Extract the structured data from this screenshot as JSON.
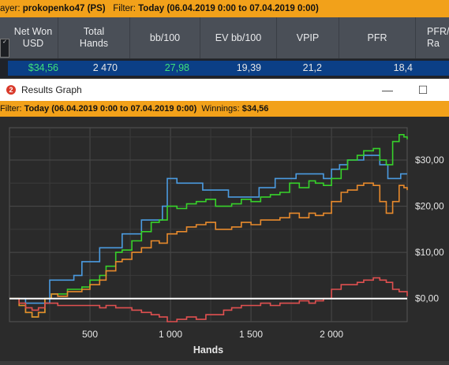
{
  "filterbar": {
    "player_label": "ayer:",
    "player": "prokopenko47 (PS)",
    "filter_label": "Filter:",
    "filter_value": "Today (06.04.2019 0:00 to 07.04.2019 0:00)"
  },
  "badge": "✓",
  "stats": {
    "headers": [
      "Net Won USD",
      "Total Hands",
      "bb/100",
      "EV bb/100",
      "VPIP",
      "PFR",
      "PFR/ Ra"
    ],
    "values": [
      "$34,56",
      "2 470",
      "27,98",
      "19,39",
      "21,2",
      "18,4",
      ""
    ],
    "colors": {
      "positive": "#3fe07a",
      "neutral": "#e6e6e6"
    }
  },
  "window": {
    "icon": "2",
    "title": "Results Graph",
    "minimize": "—",
    "maximize": "☐"
  },
  "graph_filter": {
    "filter_label": "Filter:",
    "filter_value": "Today (06.04.2019 0:00 to 07.04.2019 0:00)",
    "winnings_label": "Winnings:",
    "winnings_value": "$34,56"
  },
  "chart_data": {
    "type": "line",
    "xlabel": "Hands",
    "ylabel": "",
    "xlim": [
      0,
      2470
    ],
    "ylim": [
      -5,
      37
    ],
    "x_ticks": [
      500,
      1000,
      1500,
      2000
    ],
    "x_tick_labels": [
      "500",
      "1 000",
      "1 500",
      "2 000"
    ],
    "y_ticks": [
      0,
      10,
      20,
      30
    ],
    "y_tick_labels": [
      "$0,00",
      "$10,00",
      "$20,00",
      "$30,00"
    ],
    "grid": true,
    "series": [
      {
        "color": "#4b9be0",
        "x": [
          0,
          100,
          180,
          250,
          300,
          400,
          450,
          520,
          560,
          620,
          700,
          760,
          820,
          900,
          950,
          980,
          1040,
          1120,
          1200,
          1280,
          1360,
          1450,
          1550,
          1650,
          1700,
          1780,
          1850,
          1950,
          2000,
          2050,
          2100,
          2200,
          2300,
          2350,
          2380,
          2430,
          2470
        ],
        "y": [
          0,
          -1,
          -1,
          4,
          4,
          5,
          8,
          8,
          11,
          11,
          14,
          14,
          17,
          17,
          20,
          26,
          25,
          25,
          23.5,
          23.5,
          22,
          22,
          24,
          26,
          26,
          27,
          27,
          26,
          28,
          29,
          30,
          31,
          29,
          26,
          26,
          27,
          27
        ]
      },
      {
        "color": "#37d22a",
        "x": [
          0,
          60,
          100,
          140,
          180,
          220,
          260,
          300,
          360,
          400,
          450,
          500,
          560,
          600,
          660,
          700,
          760,
          820,
          880,
          930,
          980,
          1040,
          1100,
          1160,
          1220,
          1280,
          1330,
          1380,
          1440,
          1500,
          1560,
          1620,
          1680,
          1740,
          1800,
          1860,
          1900,
          1950,
          2000,
          2060,
          2100,
          2160,
          2200,
          2260,
          2300,
          2340,
          2380,
          2420,
          2450,
          2470
        ],
        "y": [
          0,
          -1.5,
          -3,
          -4,
          -3,
          0,
          1,
          1,
          2,
          2,
          2.5,
          4,
          5,
          7,
          10,
          10.5,
          12.5,
          14.5,
          16.5,
          17,
          20,
          19.5,
          20.5,
          21,
          21.5,
          20,
          20,
          20.5,
          21.5,
          21,
          22,
          22.5,
          23,
          25,
          24,
          25.5,
          25,
          24.5,
          26,
          28,
          30,
          31,
          32,
          32.5,
          30,
          29,
          34,
          35.5,
          35,
          34.5
        ]
      },
      {
        "color": "#e88a2c",
        "x": [
          0,
          60,
          100,
          140,
          180,
          220,
          260,
          300,
          360,
          400,
          450,
          500,
          560,
          600,
          660,
          700,
          760,
          820,
          880,
          930,
          980,
          1040,
          1100,
          1160,
          1220,
          1280,
          1330,
          1380,
          1440,
          1500,
          1560,
          1620,
          1680,
          1740,
          1800,
          1860,
          1900,
          1950,
          2000,
          2060,
          2100,
          2160,
          2200,
          2260,
          2300,
          2340,
          2380,
          2420,
          2450,
          2470
        ],
        "y": [
          0,
          -1.5,
          -3,
          -4,
          -3,
          0,
          1,
          0.5,
          1.5,
          1.5,
          2,
          3,
          4,
          6,
          8,
          8.5,
          10,
          11,
          12.5,
          12,
          14,
          14.5,
          15.5,
          16,
          16.5,
          15,
          15,
          15.5,
          16.5,
          16,
          17,
          17,
          17.5,
          18.5,
          17.5,
          18.5,
          18,
          18.5,
          21,
          23,
          23.5,
          24.5,
          25,
          24.5,
          21,
          18.5,
          21,
          24.5,
          24,
          23.5
        ]
      },
      {
        "color": "#e05050",
        "x": [
          0,
          60,
          100,
          140,
          180,
          220,
          300,
          400,
          500,
          560,
          600,
          660,
          700,
          760,
          820,
          880,
          930,
          980,
          1040,
          1100,
          1160,
          1220,
          1280,
          1330,
          1380,
          1440,
          1500,
          1560,
          1620,
          1680,
          1740,
          1800,
          1860,
          1900,
          1950,
          2000,
          2060,
          2100,
          2160,
          2200,
          2260,
          2300,
          2340,
          2380,
          2420,
          2450,
          2470
        ],
        "y": [
          0,
          -1,
          -2,
          -2.5,
          -2,
          -1,
          -1.5,
          -1.5,
          -1.5,
          -2,
          -1.5,
          -2,
          -2,
          -2.5,
          -3,
          -3.5,
          -4,
          -5,
          -4.5,
          -4,
          -4.5,
          -3.5,
          -3.5,
          -2.5,
          -2,
          -1.5,
          -1.5,
          -1,
          -1.5,
          -1,
          -1,
          -0.5,
          -1,
          -0.5,
          0,
          2,
          3,
          3,
          3.5,
          4,
          4.5,
          4,
          3.5,
          2,
          1.5,
          1.5,
          0.5
        ]
      }
    ],
    "zero_line": {
      "color": "#ffffff",
      "value": 0
    }
  }
}
